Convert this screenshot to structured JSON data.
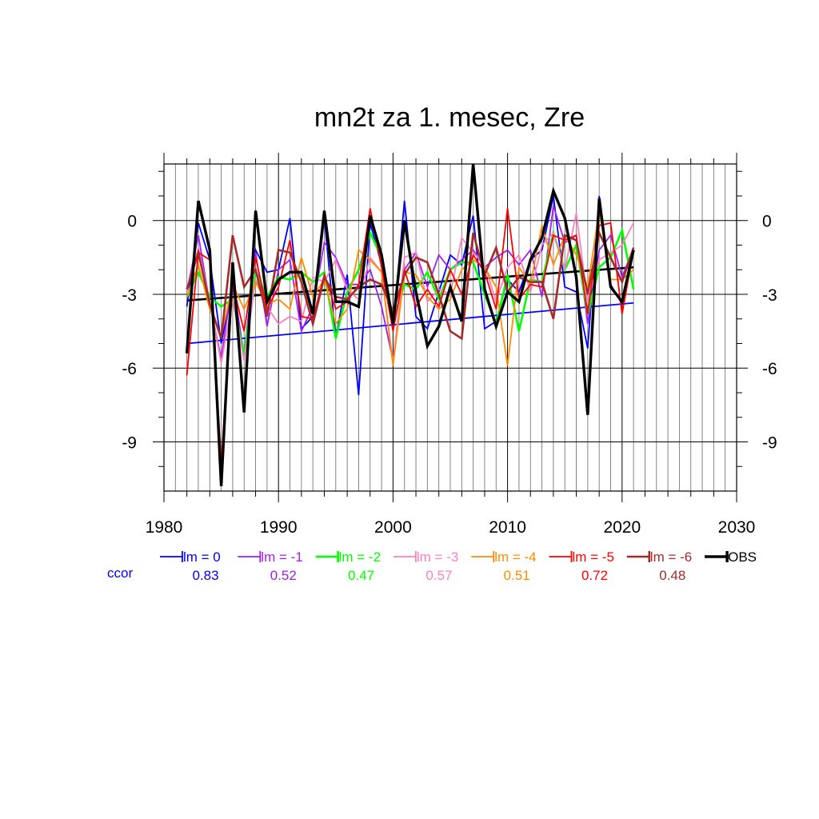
{
  "chart_data": {
    "type": "line",
    "title": "mn2t za 1. mesec, Zre",
    "xlabel": "",
    "ylabel": "",
    "xlim": [
      1980,
      2030
    ],
    "ylim": [
      -11,
      2.3
    ],
    "x_ticks": [
      "1980",
      "1990",
      "2000",
      "2010",
      "2020",
      "2030"
    ],
    "y_ticks": [
      "0",
      "-3",
      "-6",
      "-9"
    ],
    "grid": true,
    "legend_position": "bottom",
    "correlation_label": "ccor",
    "x": [
      1982,
      1983,
      1984,
      1985,
      1986,
      1987,
      1988,
      1989,
      1990,
      1991,
      1992,
      1993,
      1994,
      1995,
      1996,
      1997,
      1998,
      1999,
      2000,
      2001,
      2002,
      2003,
      2004,
      2005,
      2006,
      2007,
      2008,
      2009,
      2010,
      2011,
      2012,
      2013,
      2014,
      2015,
      2016,
      2017,
      2018,
      2019,
      2020,
      2021
    ],
    "series": [
      {
        "name": "lm = 0",
        "color": "#0000ff",
        "width": 1.8,
        "ccor": "0.83",
        "values": [
          -3.5,
          -0.1,
          -1.6,
          -5.0,
          -2.6,
          -5.5,
          -1.2,
          -2.1,
          -2.0,
          0.1,
          -4.4,
          -3.9,
          0.1,
          -4.8,
          -2.2,
          -7.1,
          -0.1,
          -1.8,
          -4.3,
          0.8,
          -3.9,
          -4.4,
          -2.9,
          -1.4,
          -1.8,
          0.2,
          -4.4,
          -4.1,
          -2.4,
          -2.9,
          -1.6,
          -1.2,
          1.0,
          -2.7,
          -2.9,
          -5.2,
          1.0,
          -2.6,
          -3.4,
          -1.3
        ]
      },
      {
        "name": "lm = -1",
        "color": "#a020f0",
        "width": 1.8,
        "ccor": "0.52",
        "values": [
          -2.9,
          -0.6,
          -3.4,
          -5.6,
          -2.4,
          -5.5,
          -1.3,
          -4.3,
          -2.0,
          -1.6,
          -4.5,
          -3.5,
          -0.9,
          -1.5,
          -2.6,
          -2.6,
          -2.0,
          -3.5,
          -5.7,
          -2.0,
          -1.3,
          -2.7,
          -1.4,
          -2.0,
          -1.6,
          -1.2,
          -1.9,
          -1.5,
          -1.2,
          -1.8,
          -1.2,
          -3.1,
          0.6,
          -0.9,
          -0.6,
          -4.2,
          -1.2,
          -0.6,
          -2.3,
          -1.1
        ]
      },
      {
        "name": "lm = -2",
        "color": "#00ff00",
        "width": 2.6,
        "ccor": "0.47",
        "values": [
          -3.1,
          -2.1,
          -3.1,
          -3.5,
          -3.2,
          -5.5,
          -2.1,
          -3.1,
          -2.3,
          -2.4,
          -2.1,
          -2.5,
          -2.1,
          -4.8,
          -2.9,
          -2.0,
          -0.5,
          -1.5,
          -4.0,
          -2.6,
          -2.8,
          -2.1,
          -3.2,
          -2.0,
          -1.7,
          -1.7,
          -3.0,
          -4.2,
          -2.2,
          -4.5,
          -2.4,
          -2.5,
          -0.5,
          -2.0,
          -1.0,
          -3.8,
          -1.9,
          -1.5,
          -0.4,
          -2.8
        ]
      },
      {
        "name": "lm = -3",
        "color": "#ff80c0",
        "width": 1.8,
        "ccor": "0.57",
        "values": [
          -2.9,
          -1.1,
          -3.3,
          -5.8,
          -3.2,
          -5.7,
          -2.4,
          -3.5,
          -4.2,
          -3.9,
          -4.1,
          -2.3,
          -2.5,
          -1.6,
          -2.8,
          -3.2,
          -1.5,
          -2.1,
          -5.8,
          -1.5,
          -1.3,
          -3.3,
          -2.8,
          -3.0,
          -0.7,
          -1.3,
          -1.8,
          -3.3,
          -1.9,
          -1.4,
          -2.9,
          -1.0,
          -0.5,
          -2.0,
          0.3,
          -3.3,
          -1.6,
          -1.3,
          -1.0,
          -0.1
        ]
      },
      {
        "name": "lm = -4",
        "color": "#ff8c00",
        "width": 1.8,
        "ccor": "0.51",
        "values": [
          -3.1,
          -1.8,
          -3.6,
          -4.7,
          -2.6,
          -3.6,
          -2.5,
          -3.4,
          -3.2,
          -3.6,
          -1.5,
          -3.1,
          -2.4,
          -4.2,
          -3.6,
          -1.2,
          -1.6,
          -2.1,
          -5.9,
          -2.1,
          -2.2,
          -3.1,
          -3.6,
          -3.2,
          -2.0,
          -1.6,
          -1.9,
          -2.7,
          -5.9,
          -1.9,
          -2.6,
          -0.2,
          -1.8,
          -0.6,
          -1.4,
          -2.7,
          0.4,
          -2.4,
          -2.4,
          -2.0
        ]
      },
      {
        "name": "lm = -5",
        "color": "#ff0000",
        "width": 1.8,
        "ccor": "0.72",
        "values": [
          -6.3,
          -1.3,
          -1.6,
          -9.9,
          -2.6,
          -4.5,
          -1.5,
          -3.6,
          -2.7,
          -0.8,
          -3.9,
          -4.0,
          -2.2,
          -3.6,
          -3.3,
          -2.6,
          0.5,
          -1.9,
          -4.5,
          -2.0,
          -3.5,
          -2.8,
          -3.5,
          -2.0,
          -3.0,
          -1.4,
          -2.1,
          -3.6,
          0.5,
          -3.2,
          -2.6,
          -2.7,
          -0.6,
          -0.8,
          -0.6,
          -3.8,
          -0.2,
          -0.1,
          -3.8,
          -1.2
        ]
      },
      {
        "name": "lm = -6",
        "color": "#a52a2a",
        "width": 2.6,
        "ccor": "0.48",
        "values": [
          -2.8,
          -1.3,
          -3.4,
          -4.8,
          -0.6,
          -2.7,
          -2.0,
          -3.9,
          -1.2,
          -1.3,
          -2.5,
          -4.2,
          -2.3,
          -3.1,
          -3.2,
          -2.7,
          -2.4,
          -2.6,
          -3.7,
          -2.2,
          -1.5,
          -1.7,
          -3.0,
          -4.5,
          -4.8,
          -0.5,
          -2.2,
          -1.1,
          -2.9,
          -2.3,
          -2.5,
          -2.5,
          -4.0,
          -0.6,
          -0.8,
          -3.0,
          -0.5,
          -1.5,
          -2.5,
          -1.1
        ]
      },
      {
        "name": "OBS",
        "color": "#000000",
        "width": 3.4,
        "ccor": "",
        "values": [
          -5.4,
          0.8,
          -1.2,
          -10.8,
          -1.7,
          -7.8,
          0.4,
          -3.3,
          -2.4,
          -2.1,
          -2.1,
          -3.8,
          0.4,
          -3.3,
          -3.3,
          -3.5,
          0.2,
          -1.4,
          -4.2,
          0.0,
          -2.9,
          -5.1,
          -4.3,
          -2.7,
          -4.1,
          2.3,
          -2.8,
          -4.3,
          -2.9,
          -3.3,
          -1.6,
          -0.7,
          1.2,
          0.1,
          -2.3,
          -7.9,
          0.9,
          -2.7,
          -3.3,
          -1.2
        ]
      }
    ],
    "trends": [
      {
        "name": "lm = 0 trend",
        "color": "#0000ff",
        "width": 1.8,
        "x": [
          1982,
          2021
        ],
        "y": [
          -5.0,
          -3.35
        ]
      },
      {
        "name": "OBS trend",
        "color": "#000000",
        "width": 2.6,
        "x": [
          1982,
          2021
        ],
        "y": [
          -3.25,
          -1.9
        ]
      }
    ]
  }
}
